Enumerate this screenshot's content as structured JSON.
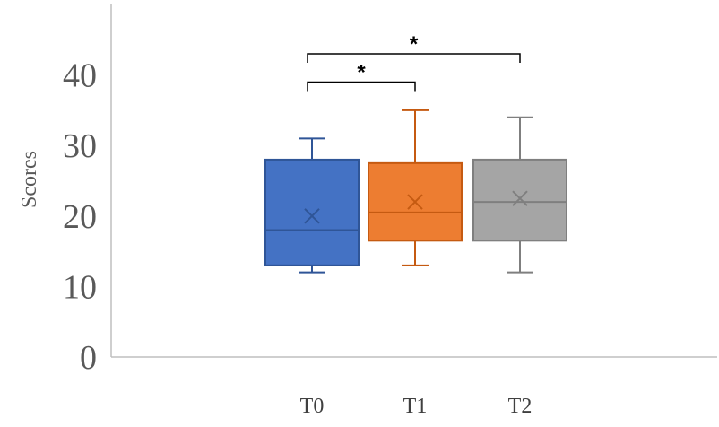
{
  "chart_data": {
    "type": "box",
    "title": "",
    "xlabel": "",
    "ylabel": "Scores",
    "ylim": [
      0,
      50
    ],
    "yticks": [
      0,
      10,
      20,
      30,
      40
    ],
    "categories": [
      "T0",
      "T1",
      "T2"
    ],
    "series": [
      {
        "category": "T0",
        "min": 12,
        "q1": 13,
        "median": 18,
        "mean": 20,
        "q3": 28,
        "max": 31,
        "color": "#4472C4",
        "stroke": "#2F5597"
      },
      {
        "category": "T1",
        "min": 13,
        "q1": 16.5,
        "median": 20.5,
        "mean": 22,
        "q3": 27.5,
        "max": 35,
        "color": "#ED7D31",
        "stroke": "#C55A11"
      },
      {
        "category": "T2",
        "min": 12,
        "q1": 16.5,
        "median": 22,
        "mean": 22.5,
        "q3": 28,
        "max": 34,
        "color": "#A5A5A5",
        "stroke": "#7F7F7F"
      }
    ],
    "significance": [
      {
        "from": "T0",
        "to": "T1",
        "label": "*",
        "y": 39
      },
      {
        "from": "T0",
        "to": "T2",
        "label": "*",
        "y": 43
      }
    ]
  }
}
